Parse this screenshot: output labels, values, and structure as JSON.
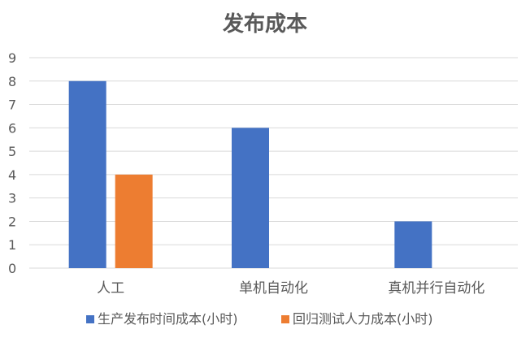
{
  "chart_data": {
    "type": "bar",
    "title": "发布成本",
    "xlabel": "",
    "ylabel": "",
    "categories": [
      "人工",
      "单机自动化",
      "真机并行自动化"
    ],
    "series": [
      {
        "name": "生产发布时间成本(小时)",
        "color": "#4472C4",
        "values": [
          8,
          6,
          2
        ]
      },
      {
        "name": "回归测试人力成本(小时)",
        "color": "#ED7D31",
        "values": [
          4,
          null,
          null
        ]
      }
    ],
    "ylim": [
      0,
      9
    ],
    "yticks": [
      0,
      1,
      2,
      3,
      4,
      5,
      6,
      7,
      8,
      9
    ],
    "grid": true,
    "legend_position": "bottom"
  }
}
